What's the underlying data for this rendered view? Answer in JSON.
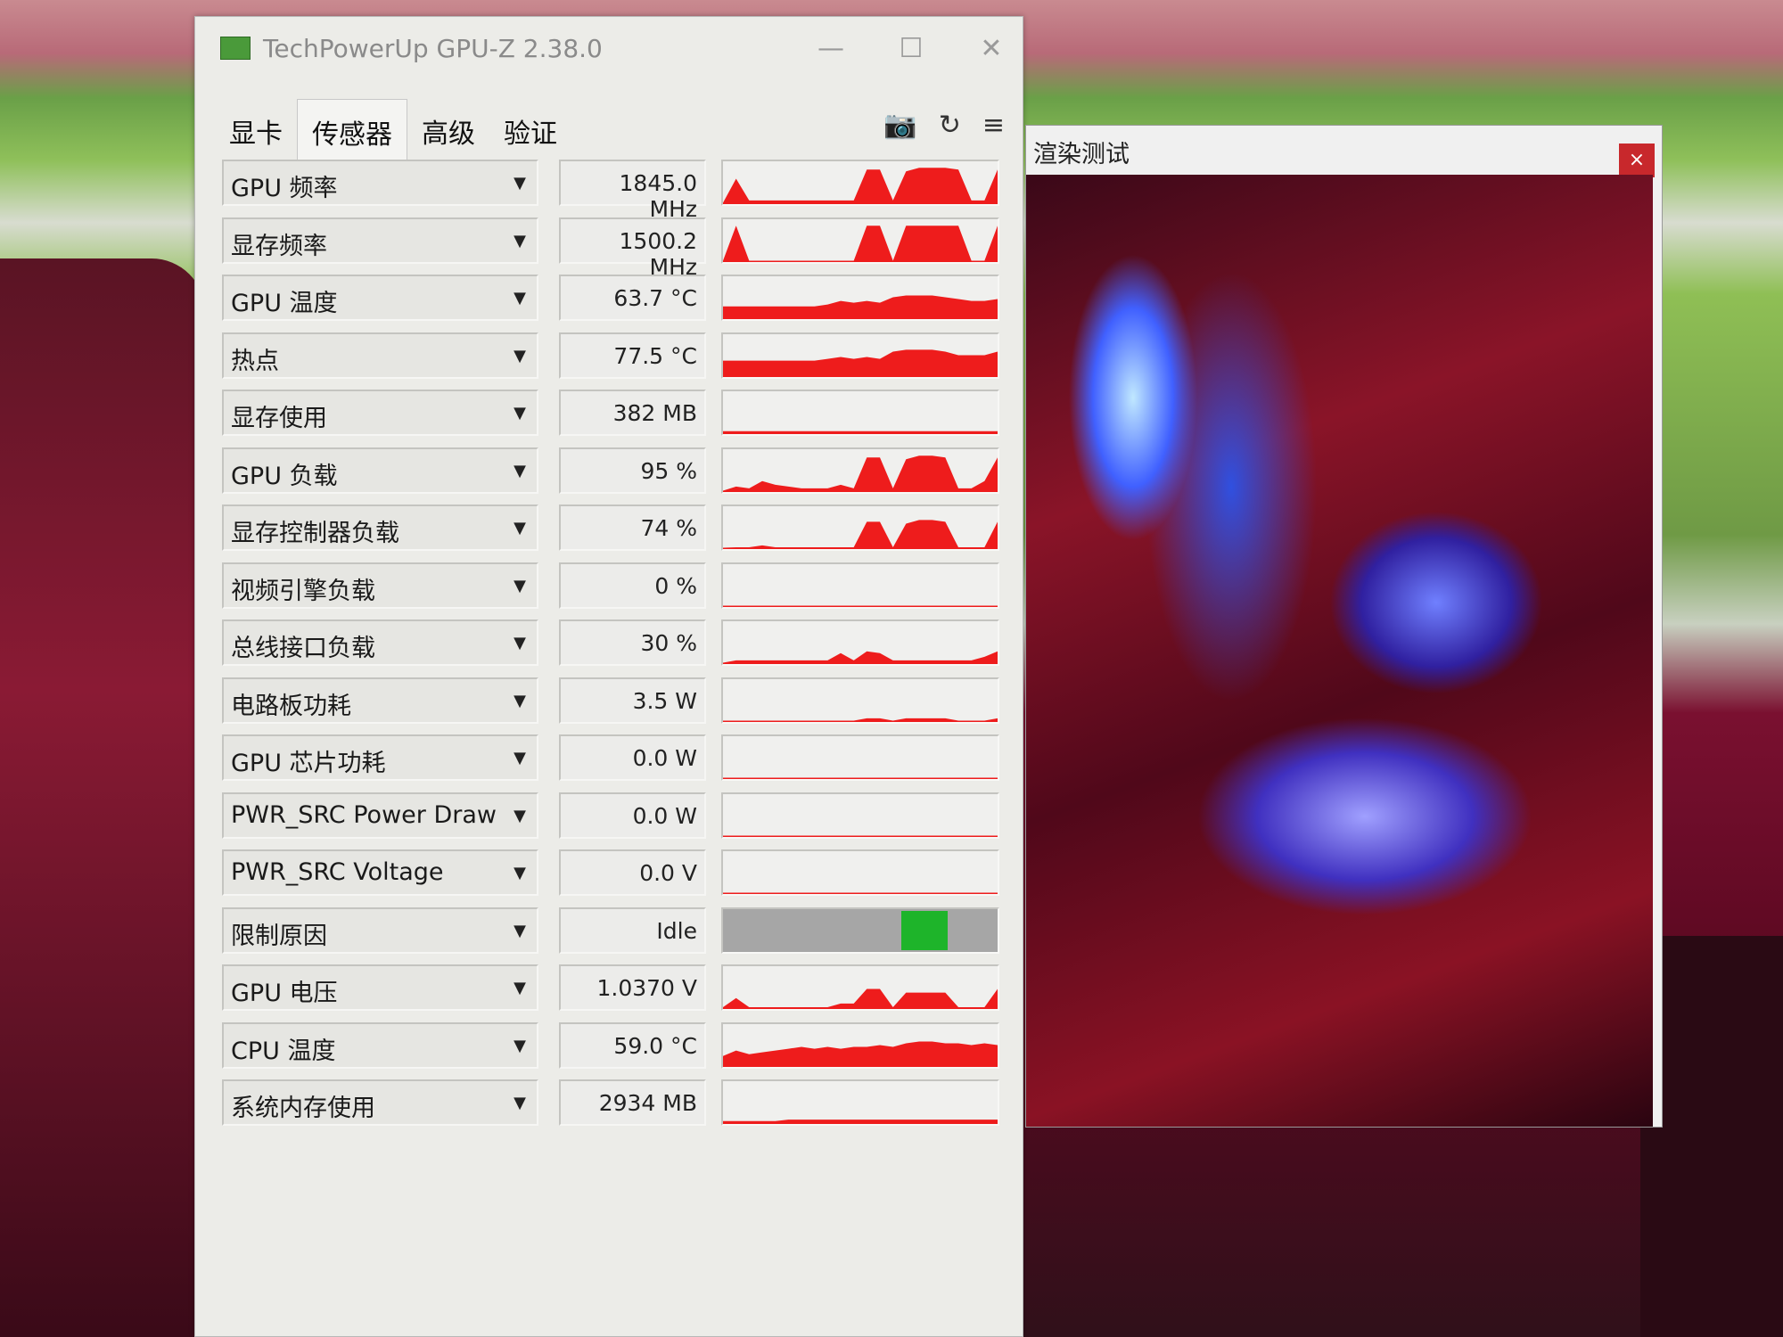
{
  "window": {
    "title": "TechPowerUp GPU-Z 2.38.0",
    "minimize": "—",
    "maximize": "☐",
    "close": "✕"
  },
  "tabs": [
    {
      "label": "显卡"
    },
    {
      "label": "传感器",
      "active": true
    },
    {
      "label": "高级"
    },
    {
      "label": "验证"
    }
  ],
  "toolbar": {
    "camera": "📷",
    "refresh": "↻",
    "menu": "≡"
  },
  "colors": {
    "graph": "#ee1c1c",
    "perfcap_idle": "#1eb42a",
    "perfcap_bg": "#a6a6a6"
  },
  "sensors": [
    {
      "label": "GPU 频率",
      "value": "1845.0 MHz",
      "graph": [
        0,
        0.7,
        0.1,
        0.1,
        0.1,
        0.1,
        0.1,
        0.1,
        0.1,
        0.1,
        0.1,
        0.95,
        0.95,
        0.1,
        0.9,
        1,
        1,
        1,
        0.95,
        0.1,
        0.1,
        0.95
      ]
    },
    {
      "label": "显存频率",
      "value": "1500.2 MHz",
      "graph": [
        0,
        1,
        0,
        0,
        0,
        0,
        0,
        0,
        0,
        0,
        0,
        1,
        1,
        0,
        1,
        1,
        1,
        1,
        1,
        0,
        0,
        1
      ]
    },
    {
      "label": "GPU 温度",
      "value": "63.7 °C",
      "graph": [
        0.35,
        0.35,
        0.35,
        0.35,
        0.35,
        0.35,
        0.35,
        0.35,
        0.4,
        0.5,
        0.45,
        0.5,
        0.45,
        0.6,
        0.65,
        0.65,
        0.65,
        0.6,
        0.55,
        0.5,
        0.5,
        0.55
      ]
    },
    {
      "label": "热点",
      "value": "77.5 °C",
      "graph": [
        0.45,
        0.45,
        0.45,
        0.45,
        0.45,
        0.45,
        0.45,
        0.45,
        0.5,
        0.55,
        0.5,
        0.55,
        0.5,
        0.7,
        0.75,
        0.75,
        0.75,
        0.7,
        0.6,
        0.6,
        0.6,
        0.7
      ]
    },
    {
      "label": "显存使用",
      "value": "382 MB",
      "graph": [
        0.08,
        0.08,
        0.08,
        0.08,
        0.08,
        0.08,
        0.08,
        0.08,
        0.08,
        0.08,
        0.08,
        0.08,
        0.08,
        0.08,
        0.08,
        0.08,
        0.08,
        0.08,
        0.08,
        0.08,
        0.08,
        0.08
      ]
    },
    {
      "label": "GPU 负载",
      "value": "95 %",
      "graph": [
        0,
        0.15,
        0.1,
        0.3,
        0.2,
        0.15,
        0.1,
        0.1,
        0.1,
        0.2,
        0.1,
        0.95,
        0.95,
        0.1,
        0.9,
        1,
        1,
        0.95,
        0.1,
        0.1,
        0.3,
        0.95
      ]
    },
    {
      "label": "显存控制器负载",
      "value": "74 %",
      "graph": [
        0,
        0.05,
        0.05,
        0.1,
        0.05,
        0.05,
        0.05,
        0.05,
        0.05,
        0.05,
        0.05,
        0.75,
        0.75,
        0.05,
        0.7,
        0.8,
        0.8,
        0.75,
        0.05,
        0.05,
        0.05,
        0.75
      ]
    },
    {
      "label": "视频引擎负载",
      "value": "0 %",
      "graph": [
        0,
        0,
        0,
        0,
        0,
        0,
        0,
        0,
        0,
        0,
        0,
        0,
        0,
        0,
        0,
        0,
        0,
        0,
        0,
        0,
        0,
        0
      ]
    },
    {
      "label": "总线接口负载",
      "value": "30 %",
      "graph": [
        0,
        0.1,
        0.1,
        0.1,
        0.1,
        0.1,
        0.1,
        0.1,
        0.1,
        0.3,
        0.1,
        0.35,
        0.3,
        0.1,
        0.1,
        0.1,
        0.1,
        0.1,
        0.1,
        0.1,
        0.2,
        0.35
      ]
    },
    {
      "label": "电路板功耗",
      "value": "3.5 W",
      "graph": [
        0,
        0,
        0,
        0,
        0,
        0,
        0,
        0,
        0,
        0,
        0,
        0.1,
        0.1,
        0,
        0.1,
        0.1,
        0.1,
        0.1,
        0,
        0,
        0,
        0.1
      ]
    },
    {
      "label": "GPU 芯片功耗",
      "value": "0.0 W",
      "graph": [
        0,
        0,
        0,
        0,
        0,
        0,
        0,
        0,
        0,
        0,
        0,
        0,
        0,
        0,
        0,
        0,
        0,
        0,
        0,
        0,
        0,
        0
      ]
    },
    {
      "label": "PWR_SRC Power Draw",
      "value": "0.0 W",
      "graph": [
        0,
        0,
        0,
        0,
        0,
        0,
        0,
        0,
        0,
        0,
        0,
        0,
        0,
        0,
        0,
        0,
        0,
        0,
        0,
        0,
        0,
        0
      ]
    },
    {
      "label": "PWR_SRC Voltage",
      "value": "0.0 V",
      "graph": [
        0,
        0,
        0,
        0,
        0,
        0,
        0,
        0,
        0,
        0,
        0,
        0,
        0,
        0,
        0,
        0,
        0,
        0,
        0,
        0,
        0,
        0
      ]
    },
    {
      "label": "限制原因",
      "value": "Idle",
      "perfcap": true
    },
    {
      "label": "GPU 电压",
      "value": "1.0370 V",
      "graph": [
        0.05,
        0.3,
        0.05,
        0.05,
        0.05,
        0.05,
        0.05,
        0.05,
        0.05,
        0.15,
        0.15,
        0.55,
        0.55,
        0.05,
        0.45,
        0.45,
        0.45,
        0.45,
        0.05,
        0.05,
        0.05,
        0.55
      ]
    },
    {
      "label": "CPU 温度",
      "value": "59.0 °C",
      "graph": [
        0.3,
        0.45,
        0.35,
        0.4,
        0.45,
        0.5,
        0.55,
        0.5,
        0.55,
        0.5,
        0.55,
        0.55,
        0.6,
        0.55,
        0.65,
        0.7,
        0.7,
        0.65,
        0.65,
        0.6,
        0.65,
        0.6
      ]
    },
    {
      "label": "系统内存使用",
      "value": "2934 MB",
      "graph": [
        0.08,
        0.08,
        0.08,
        0.08,
        0.08,
        0.12,
        0.12,
        0.12,
        0.12,
        0.12,
        0.12,
        0.12,
        0.12,
        0.12,
        0.12,
        0.12,
        0.12,
        0.12,
        0.12,
        0.12,
        0.12,
        0.12
      ]
    }
  ],
  "render_window": {
    "title": "渲染测试",
    "close": "×"
  }
}
